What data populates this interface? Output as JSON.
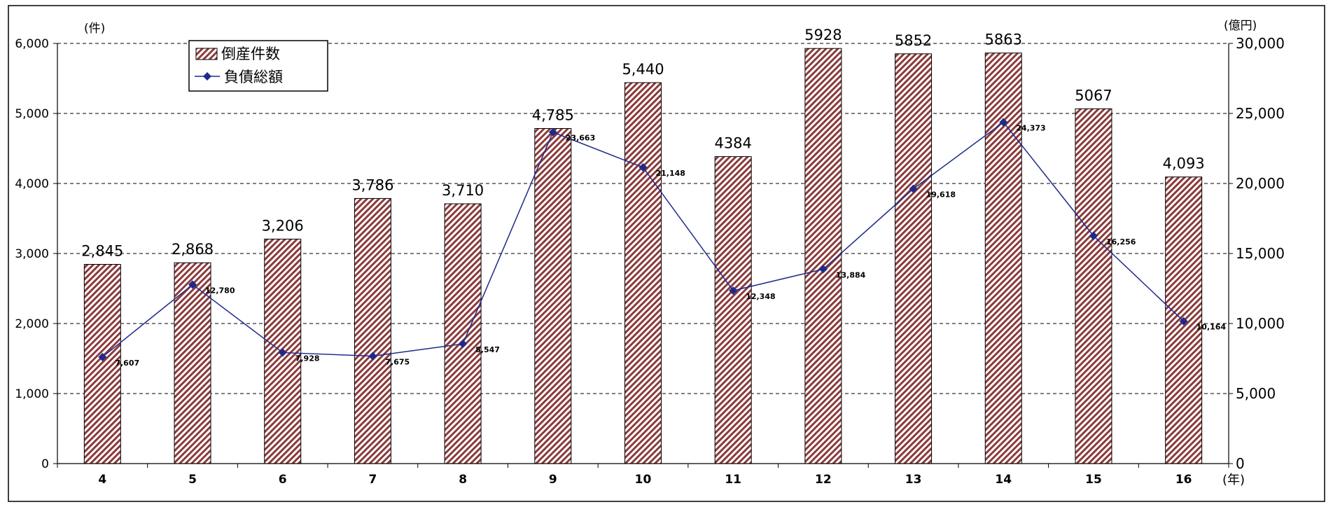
{
  "chart_data": {
    "type": "bar",
    "title": "",
    "xlabel": "(年)",
    "ylabel_left": "(件)",
    "ylabel_right": "(億円)",
    "categories": [
      "4",
      "5",
      "6",
      "7",
      "8",
      "9",
      "10",
      "11",
      "12",
      "13",
      "14",
      "15",
      "16"
    ],
    "ylim_left": [
      0,
      6000
    ],
    "ylim_right": [
      0,
      30000
    ],
    "yticks_left": [
      "0",
      "1,000",
      "2,000",
      "3,000",
      "4,000",
      "5,000",
      "6,000"
    ],
    "yticks_right": [
      "0",
      "5,000",
      "10,000",
      "15,000",
      "20,000",
      "25,000",
      "30,000"
    ],
    "grid": "horizontal dashed",
    "legend_position": "top-left",
    "series": [
      {
        "name": "倒産件数",
        "kind": "bar",
        "axis": "left",
        "color": "#8b3a3a",
        "values": [
          2845,
          2868,
          3206,
          3786,
          3710,
          4785,
          5440,
          4384,
          5928,
          5852,
          5863,
          5067,
          4093
        ],
        "labels": [
          "2,845",
          "2,868",
          "3,206",
          "3,786",
          "3,710",
          "4,785",
          "5,440",
          "4384",
          "5928",
          "5852",
          "5863",
          "5067",
          "4,093"
        ]
      },
      {
        "name": "負債総額",
        "kind": "line",
        "axis": "right",
        "color": "#1f2a8c",
        "values": [
          7607,
          12780,
          7928,
          7675,
          8547,
          23663,
          21148,
          12348,
          13884,
          19618,
          24373,
          16256,
          10164
        ],
        "labels": [
          "7,607",
          "12,780",
          "7,928",
          "7,675",
          "8,547",
          "23,663",
          "21,148",
          "12,348",
          "13,884",
          "19,618",
          "24,373",
          "16,256",
          "10,164"
        ]
      }
    ]
  }
}
